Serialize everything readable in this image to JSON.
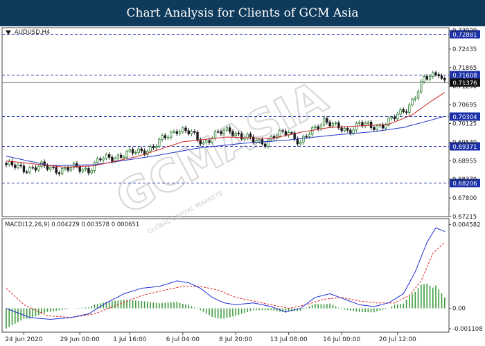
{
  "banner": {
    "title": "Chart Analysis for Clients of GCM Asia"
  },
  "watermark": {
    "brand": "GCMASIA",
    "sub": "GLOBAL CAPITAL MARKETS"
  },
  "colors": {
    "banner": "#0e3a5c",
    "bull": "#2e7d32",
    "bear": "#1b1b1b",
    "ma_fast": "#cc2222",
    "ma_slow": "#2233cc",
    "level_line": "#1a2fa8",
    "macd_line": "#1f2fd6",
    "signal_line": "#e02020",
    "hist": "#3a9a3a"
  },
  "chart_data": [
    {
      "type": "line",
      "subtype": "candlestick",
      "symbol_label": "AUDUSD,H4",
      "ylim": [
        0.6715,
        0.73
      ],
      "y_ticks": [
        "0.73020",
        "0.72435",
        "0.71865",
        "0.71290",
        "0.70695",
        "0.70125",
        "0.69540",
        "0.68955",
        "0.68370",
        "0.67800",
        "0.67215"
      ],
      "levels": [
        {
          "label": "0.72881",
          "value": 0.72881,
          "style": "dashed"
        },
        {
          "label": "0.71608",
          "value": 0.71608,
          "style": "dashed"
        },
        {
          "label": "0.71376",
          "value": 0.71376,
          "style": "solid",
          "current": true
        },
        {
          "label": "0.70304",
          "value": 0.70304,
          "style": "dashed"
        },
        {
          "label": "0.69371",
          "value": 0.69371,
          "style": "dashed"
        },
        {
          "label": "0.68206",
          "value": 0.68206,
          "style": "dashed"
        }
      ],
      "close_anchors": [
        [
          0,
          0.6878
        ],
        [
          6,
          0.6865
        ],
        [
          12,
          0.6872
        ],
        [
          18,
          0.6862
        ],
        [
          24,
          0.6868
        ],
        [
          28,
          0.6862
        ],
        [
          32,
          0.6895
        ],
        [
          38,
          0.6905
        ],
        [
          44,
          0.6918
        ],
        [
          50,
          0.6932
        ],
        [
          54,
          0.6965
        ],
        [
          58,
          0.699
        ],
        [
          63,
          0.6975
        ],
        [
          67,
          0.6948
        ],
        [
          72,
          0.6975
        ],
        [
          76,
          0.699
        ],
        [
          80,
          0.6965
        ],
        [
          84,
          0.6955
        ],
        [
          88,
          0.695
        ],
        [
          92,
          0.6968
        ],
        [
          96,
          0.6985
        ],
        [
          100,
          0.6945
        ],
        [
          104,
          0.6985
        ],
        [
          108,
          0.702
        ],
        [
          112,
          0.6995
        ],
        [
          116,
          0.6985
        ],
        [
          120,
          0.7008
        ],
        [
          124,
          0.6995
        ],
        [
          128,
          0.7005
        ],
        [
          132,
          0.7025
        ],
        [
          136,
          0.7055
        ],
        [
          139,
          0.7095
        ],
        [
          142,
          0.7145
        ],
        [
          145,
          0.716
        ],
        [
          147,
          0.7172
        ],
        [
          148,
          0.7152
        ],
        [
          149,
          0.7138
        ]
      ],
      "ma_fast_anchors": [
        [
          0,
          0.689
        ],
        [
          20,
          0.687
        ],
        [
          30,
          0.6875
        ],
        [
          45,
          0.6905
        ],
        [
          60,
          0.695
        ],
        [
          75,
          0.6965
        ],
        [
          90,
          0.696
        ],
        [
          100,
          0.698
        ],
        [
          110,
          0.6995
        ],
        [
          120,
          0.7
        ],
        [
          130,
          0.7005
        ],
        [
          138,
          0.7035
        ],
        [
          144,
          0.7075
        ],
        [
          149,
          0.7105
        ]
      ],
      "ma_slow_anchors": [
        [
          0,
          0.6905
        ],
        [
          15,
          0.6875
        ],
        [
          30,
          0.6878
        ],
        [
          50,
          0.6905
        ],
        [
          65,
          0.693
        ],
        [
          80,
          0.6945
        ],
        [
          95,
          0.6955
        ],
        [
          110,
          0.697
        ],
        [
          125,
          0.6982
        ],
        [
          135,
          0.6995
        ],
        [
          143,
          0.7015
        ],
        [
          149,
          0.703
        ]
      ],
      "x_ticks": [
        {
          "label": "24 Jun 2020",
          "idx": 6
        },
        {
          "label": "29 Jun 00:00",
          "idx": 25
        },
        {
          "label": "1 Jul 16:00",
          "idx": 42
        },
        {
          "label": "6 Jul 04:00",
          "idx": 60
        },
        {
          "label": "8 Jul 20:00",
          "idx": 78
        },
        {
          "label": "13 Jul 08:00",
          "idx": 96
        },
        {
          "label": "16 Jul 00:00",
          "idx": 114
        },
        {
          "label": "20 Jul 12:00",
          "idx": 133
        }
      ]
    },
    {
      "type": "line",
      "subtype": "macd",
      "label": "MACD(12,26,9) 0.004229 0.003578 0.000651",
      "ylim": [
        -0.0013,
        0.0049
      ],
      "y_ticks": [
        "0.004582",
        "0.00",
        "-0.001108"
      ],
      "macd_anchors": [
        [
          0,
          0.0
        ],
        [
          8,
          -0.0005
        ],
        [
          15,
          -0.0006
        ],
        [
          22,
          -0.0005
        ],
        [
          28,
          -0.0003
        ],
        [
          34,
          0.0003
        ],
        [
          40,
          0.0008
        ],
        [
          46,
          0.0011
        ],
        [
          52,
          0.0012
        ],
        [
          58,
          0.0015
        ],
        [
          62,
          0.0014
        ],
        [
          66,
          0.0011
        ],
        [
          70,
          0.0006
        ],
        [
          74,
          0.0003
        ],
        [
          78,
          0.0002
        ],
        [
          84,
          0.0003
        ],
        [
          90,
          0.0001
        ],
        [
          95,
          -0.0002
        ],
        [
          100,
          0.0
        ],
        [
          105,
          0.0006
        ],
        [
          110,
          0.0008
        ],
        [
          115,
          0.0005
        ],
        [
          120,
          0.0002
        ],
        [
          125,
          0.0001
        ],
        [
          130,
          0.0003
        ],
        [
          135,
          0.0008
        ],
        [
          139,
          0.002
        ],
        [
          143,
          0.0036
        ],
        [
          146,
          0.0044
        ],
        [
          149,
          0.0042
        ]
      ],
      "signal_anchors": [
        [
          0,
          0.0011
        ],
        [
          6,
          0.0002
        ],
        [
          14,
          -0.0004
        ],
        [
          22,
          -0.0005
        ],
        [
          30,
          -0.0003
        ],
        [
          38,
          0.0002
        ],
        [
          46,
          0.0007
        ],
        [
          54,
          0.001
        ],
        [
          60,
          0.0012
        ],
        [
          66,
          0.0012
        ],
        [
          72,
          0.001
        ],
        [
          78,
          0.0006
        ],
        [
          84,
          0.0004
        ],
        [
          90,
          0.0002
        ],
        [
          96,
          0.0
        ],
        [
          102,
          0.0002
        ],
        [
          108,
          0.0005
        ],
        [
          114,
          0.0006
        ],
        [
          120,
          0.0004
        ],
        [
          126,
          0.0003
        ],
        [
          132,
          0.0003
        ],
        [
          137,
          0.0007
        ],
        [
          141,
          0.0015
        ],
        [
          145,
          0.003
        ],
        [
          149,
          0.0036
        ]
      ]
    }
  ]
}
